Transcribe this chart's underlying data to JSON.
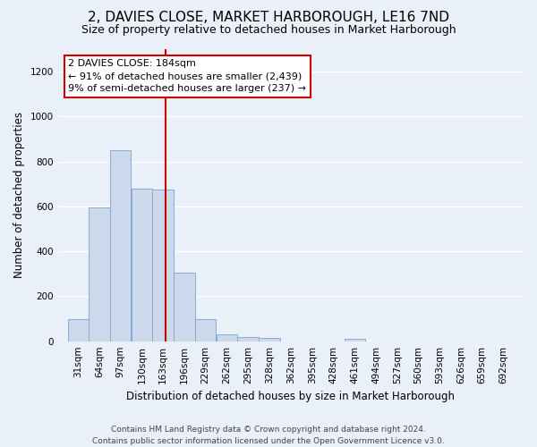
{
  "title": "2, DAVIES CLOSE, MARKET HARBOROUGH, LE16 7ND",
  "subtitle": "Size of property relative to detached houses in Market Harborough",
  "xlabel": "Distribution of detached houses by size in Market Harborough",
  "ylabel": "Number of detached properties",
  "footnote": "Contains HM Land Registry data © Crown copyright and database right 2024.\nContains public sector information licensed under the Open Government Licence v3.0.",
  "bin_labels": [
    "31sqm",
    "64sqm",
    "97sqm",
    "130sqm",
    "163sqm",
    "196sqm",
    "229sqm",
    "262sqm",
    "295sqm",
    "328sqm",
    "362sqm",
    "395sqm",
    "428sqm",
    "461sqm",
    "494sqm",
    "527sqm",
    "560sqm",
    "593sqm",
    "626sqm",
    "659sqm",
    "692sqm"
  ],
  "bar_values": [
    97,
    595,
    850,
    680,
    675,
    305,
    100,
    30,
    20,
    13,
    0,
    0,
    0,
    10,
    0,
    0,
    0,
    0,
    0,
    0,
    0
  ],
  "bar_color": "#ccd9ec",
  "bar_edgecolor": "#8aaad0",
  "property_label": "2 DAVIES CLOSE: 184sqm",
  "annotation_line1": "← 91% of detached houses are smaller (2,439)",
  "annotation_line2": "9% of semi-detached houses are larger (237) →",
  "vline_x_bin": 4,
  "vline_color": "#cc0000",
  "annotation_box_facecolor": "#ffffff",
  "annotation_box_edgecolor": "#cc0000",
  "ylim": [
    0,
    1300
  ],
  "yticks": [
    0,
    200,
    400,
    600,
    800,
    1000,
    1200
  ],
  "bin_edges": [
    31,
    64,
    97,
    130,
    163,
    196,
    229,
    262,
    295,
    328,
    362,
    395,
    428,
    461,
    494,
    527,
    560,
    593,
    626,
    659,
    692,
    725
  ],
  "background_color": "#eaf0f8",
  "grid_color": "#ffffff",
  "title_fontsize": 11,
  "subtitle_fontsize": 9,
  "ylabel_fontsize": 8.5,
  "xlabel_fontsize": 8.5,
  "footnote_fontsize": 6.5,
  "tick_fontsize": 7.5,
  "annot_fontsize": 8
}
